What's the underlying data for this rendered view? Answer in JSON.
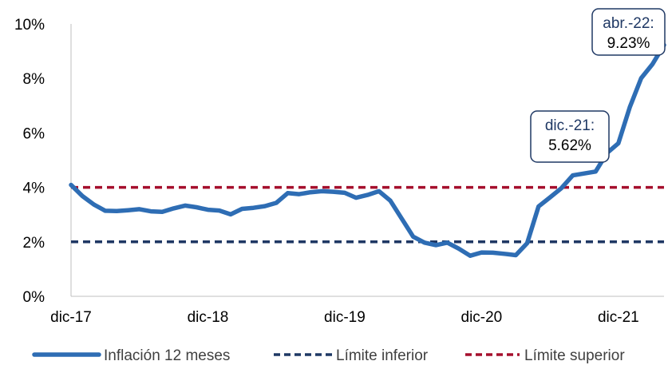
{
  "chart_data": {
    "type": "line",
    "x": [
      "dic-17",
      "ene-18",
      "feb-18",
      "mar-18",
      "abr-18",
      "may-18",
      "jun-18",
      "jul-18",
      "ago-18",
      "sep-18",
      "oct-18",
      "nov-18",
      "dic-18",
      "ene-19",
      "feb-19",
      "mar-19",
      "abr-19",
      "may-19",
      "jun-19",
      "jul-19",
      "ago-19",
      "sep-19",
      "oct-19",
      "nov-19",
      "dic-19",
      "ene-20",
      "feb-20",
      "mar-20",
      "abr-20",
      "may-20",
      "jun-20",
      "jul-20",
      "ago-20",
      "sep-20",
      "oct-20",
      "nov-20",
      "dic-20",
      "ene-21",
      "feb-21",
      "mar-21",
      "abr-21",
      "may-21",
      "jun-21",
      "jul-21",
      "ago-21",
      "sep-21",
      "oct-21",
      "nov-21",
      "dic-21",
      "ene-22",
      "feb-22",
      "mar-22",
      "abr-22"
    ],
    "x_tick_labels": [
      "dic-17",
      "dic-18",
      "dic-19",
      "dic-20",
      "dic-21"
    ],
    "y_tick_labels": [
      "0%",
      "2%",
      "4%",
      "6%",
      "8%",
      "10%"
    ],
    "ylim": [
      0,
      10
    ],
    "y_ticks": [
      0,
      2,
      4,
      6,
      8,
      10
    ],
    "grid": false,
    "legend_position": "bottom",
    "series": [
      {
        "name": "Inflación 12 meses",
        "style": "solid",
        "color": "#2E6DB4",
        "values": [
          4.09,
          3.68,
          3.37,
          3.14,
          3.13,
          3.16,
          3.2,
          3.12,
          3.1,
          3.23,
          3.33,
          3.27,
          3.18,
          3.15,
          3.01,
          3.21,
          3.25,
          3.31,
          3.43,
          3.79,
          3.75,
          3.82,
          3.86,
          3.84,
          3.8,
          3.62,
          3.72,
          3.86,
          3.51,
          2.85,
          2.19,
          1.97,
          1.88,
          1.97,
          1.75,
          1.49,
          1.61,
          1.6,
          1.56,
          1.51,
          1.95,
          3.3,
          3.63,
          3.97,
          4.44,
          4.51,
          4.58,
          5.26,
          5.62,
          6.94,
          8.01,
          8.53,
          9.23
        ]
      },
      {
        "name": "Límite inferior",
        "style": "dashed",
        "color": "#1F3864",
        "values": [
          2,
          2,
          2,
          2,
          2,
          2,
          2,
          2,
          2,
          2,
          2,
          2,
          2,
          2,
          2,
          2,
          2,
          2,
          2,
          2,
          2,
          2,
          2,
          2,
          2,
          2,
          2,
          2,
          2,
          2,
          2,
          2,
          2,
          2,
          2,
          2,
          2,
          2,
          2,
          2,
          2,
          2,
          2,
          2,
          2,
          2,
          2,
          2,
          2,
          2,
          2,
          2,
          2
        ]
      },
      {
        "name": "Límite superior",
        "style": "dashed",
        "color": "#A50F2D",
        "values": [
          4,
          4,
          4,
          4,
          4,
          4,
          4,
          4,
          4,
          4,
          4,
          4,
          4,
          4,
          4,
          4,
          4,
          4,
          4,
          4,
          4,
          4,
          4,
          4,
          4,
          4,
          4,
          4,
          4,
          4,
          4,
          4,
          4,
          4,
          4,
          4,
          4,
          4,
          4,
          4,
          4,
          4,
          4,
          4,
          4,
          4,
          4,
          4,
          4,
          4,
          4,
          4,
          4
        ]
      }
    ],
    "annotations": [
      {
        "name": "callout-dic-21",
        "x_label": "dic.-21:",
        "value_label": "5.62%"
      },
      {
        "name": "callout-abr-22",
        "x_label": "abr.-22:",
        "value_label": "9.23%"
      }
    ]
  },
  "colors": {
    "axis": "#BFBFBF",
    "callout_border": "#1F3864",
    "callout_date_text": "#1F3864",
    "callout_value_text": "#000000"
  }
}
